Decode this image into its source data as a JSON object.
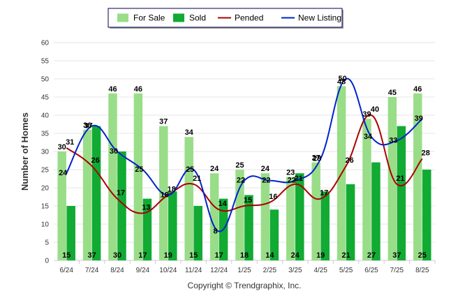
{
  "chart_data": {
    "type": "bar",
    "categories": [
      "6/24",
      "7/24",
      "8/24",
      "9/24",
      "10/24",
      "11/24",
      "12/24",
      "1/25",
      "2/25",
      "3/25",
      "4/25",
      "5/25",
      "6/25",
      "7/25",
      "8/25"
    ],
    "ylabel": "Number of Homes",
    "ylim": [
      0,
      60
    ],
    "yticks": [
      0,
      5,
      10,
      15,
      20,
      25,
      30,
      35,
      40,
      45,
      50,
      55,
      60
    ],
    "grid": true,
    "legend_position": "top-center",
    "series": [
      {
        "name": "For Sale",
        "kind": "bar",
        "color": "#99dd88",
        "values": [
          30,
          36,
          46,
          46,
          37,
          34,
          24,
          25,
          24,
          23,
          27,
          48,
          39,
          45,
          46
        ]
      },
      {
        "name": "Sold",
        "kind": "bar",
        "color": "#11aa33",
        "values": [
          15,
          37,
          30,
          17,
          19,
          15,
          17,
          18,
          14,
          24,
          19,
          21,
          27,
          37,
          25
        ]
      },
      {
        "name": "Pended",
        "kind": "line",
        "color": "#aa0000",
        "values": [
          31,
          26,
          17,
          13,
          18,
          21,
          14,
          15,
          16,
          21,
          17,
          26,
          40,
          21,
          28
        ]
      },
      {
        "name": "New Listing",
        "kind": "line",
        "color": "#0022cc",
        "values": [
          24,
          37,
          30,
          25,
          18,
          25,
          8,
          22,
          22,
          22,
          28,
          50,
          34,
          33,
          39
        ]
      }
    ]
  },
  "footer": {
    "copyright": "Copyright © Trendgraphix, Inc."
  }
}
